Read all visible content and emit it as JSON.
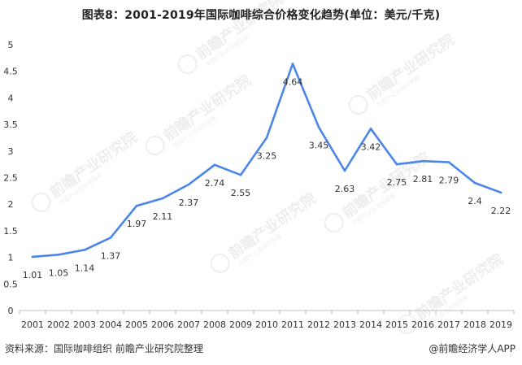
{
  "title": "图表8：2001-2019年国际咖啡综合价格变化趋势(单位：美元/千克)",
  "source": "资料来源：国际咖啡组织 前瞻产业研究院整理",
  "brand": "@前瞻经济学人APP",
  "watermark": {
    "line1": "前瞻产业研究院",
    "line2": "中国产业咨询领导者"
  },
  "colors": {
    "line": "#4a86e8",
    "axis": "#bfbfbf",
    "text": "#333333"
  },
  "chart_data": {
    "type": "line",
    "x": [
      "2001",
      "2002",
      "2003",
      "2004",
      "2005",
      "2006",
      "2007",
      "2008",
      "2009",
      "2010",
      "2011",
      "2012",
      "2013",
      "2014",
      "2015",
      "2016",
      "2017",
      "2018",
      "2019"
    ],
    "series": [
      {
        "values": [
          1.01,
          1.05,
          1.14,
          1.37,
          1.97,
          2.11,
          2.37,
          2.74,
          2.55,
          3.25,
          4.64,
          3.45,
          2.63,
          3.42,
          2.75,
          2.81,
          2.79,
          2.4,
          2.22
        ]
      }
    ],
    "ylim": [
      0,
      5
    ],
    "yticks": [
      "0",
      "0.5",
      "1",
      "1.5",
      "2",
      "2.5",
      "3",
      "3.5",
      "4",
      "4.5",
      "5"
    ],
    "data_labels": [
      "1.01",
      "1.05",
      "1.14",
      "1.37",
      "1.97",
      "2.11",
      "2.37",
      "2.74",
      "2.55",
      "3.25",
      "4.64",
      "3.45",
      "2.63",
      "3.42",
      "2.75",
      "2.81",
      "2.79",
      "2.4",
      "2.22"
    ],
    "grid": false
  }
}
